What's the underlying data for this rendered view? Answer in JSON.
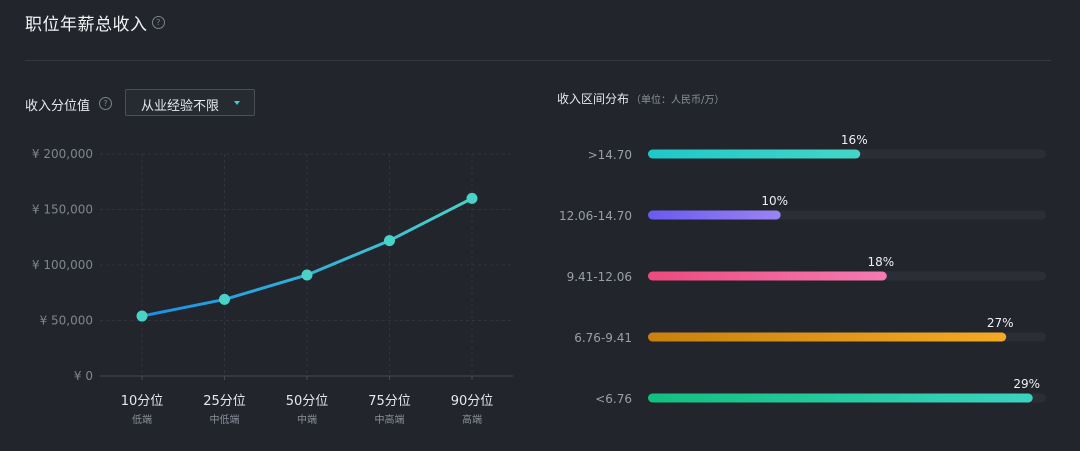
{
  "header": {
    "title": "职位年薪总收入",
    "help_glyph": "?"
  },
  "left_panel": {
    "label": "收入分位值",
    "help_glyph": "?",
    "filter": {
      "selected": "从业经验不限"
    }
  },
  "right_panel": {
    "title": "收入区间分布",
    "unit": "（单位：人民币/万）"
  },
  "colors": {
    "background": "#22252c",
    "line_start": "#1a8fe8",
    "line_end": "#4ad2c8",
    "point": "#4ad2c8",
    "bar_track": "#2b2e36"
  },
  "chart_data": [
    {
      "type": "line",
      "categories": [
        "10分位",
        "25分位",
        "50分位",
        "75分位",
        "90分位"
      ],
      "category_sublabels": [
        "低端",
        "中低端",
        "中端",
        "中高端",
        "高端"
      ],
      "values": [
        54000,
        69000,
        91000,
        122000,
        160000
      ],
      "yticks": [
        "¥ 0",
        "¥ 50,000",
        "¥ 100,000",
        "¥ 150,000",
        "¥ 200,000"
      ],
      "ylim": [
        0,
        200000
      ],
      "grid": true
    },
    {
      "type": "bar",
      "orientation": "horizontal",
      "categories": [
        ">14.70",
        "12.06-14.70",
        "9.41-12.06",
        "6.76-9.41",
        "<6.76"
      ],
      "values": [
        16,
        10,
        18,
        27,
        29
      ],
      "labels": [
        "16%",
        "10%",
        "18%",
        "27%",
        "29%"
      ],
      "xlim": [
        0,
        30
      ],
      "bar_colors": [
        [
          "#1ec8c8",
          "#44d6c6"
        ],
        [
          "#6a5af0",
          "#9a84f4"
        ],
        [
          "#ee4a7e",
          "#f47bb2"
        ],
        [
          "#c9800e",
          "#f4aa24"
        ],
        [
          "#12c07e",
          "#3cd2c0"
        ]
      ]
    }
  ]
}
